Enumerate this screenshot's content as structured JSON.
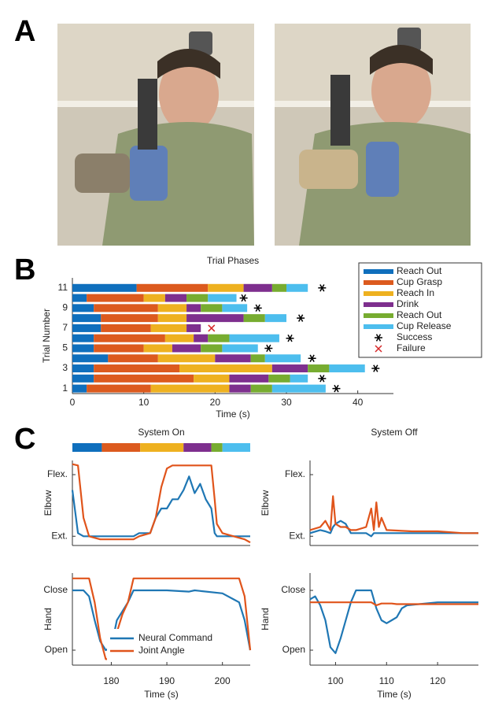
{
  "panel_labels": [
    "A",
    "B",
    "C"
  ],
  "chart_data": [
    {
      "type": "bar",
      "orientation": "horizontal",
      "stacked": true,
      "title": "Trial Phases",
      "xlabel": "Time (s)",
      "ylabel": "Trial Number",
      "categories": [
        1,
        2,
        3,
        4,
        5,
        6,
        7,
        8,
        9,
        10,
        11
      ],
      "xlim": [
        0,
        45
      ],
      "xticks": [
        0,
        10,
        20,
        30,
        40
      ],
      "ylim": [
        0.5,
        12
      ],
      "yticks": [
        1,
        3,
        5,
        7,
        9,
        11
      ],
      "legend": "northeast",
      "series": [
        {
          "name": "Reach Out",
          "color": "#0f6fbd",
          "values": [
            2,
            3,
            3,
            5,
            3,
            3,
            4,
            4,
            3,
            2,
            9
          ]
        },
        {
          "name": "Cup Grasp",
          "color": "#dc5a1e",
          "values": [
            9,
            14,
            12,
            7,
            7,
            10,
            7,
            8,
            9,
            8,
            10
          ]
        },
        {
          "name": "Reach In",
          "color": "#eeb120",
          "values": [
            11,
            5,
            13,
            8,
            4,
            4,
            5,
            4,
            4,
            3,
            5
          ]
        },
        {
          "name": "Drink",
          "color": "#7e2f8e",
          "values": [
            3,
            5.5,
            5,
            5,
            4,
            2,
            2,
            8,
            2,
            3,
            4
          ]
        },
        {
          "name": "Reach Out",
          "color": "#77ac30",
          "values": [
            3,
            3,
            3,
            2,
            3,
            3,
            null,
            3,
            3,
            3,
            2
          ]
        },
        {
          "name": "Cup Release",
          "color": "#4dbeee",
          "values": [
            7.5,
            2.5,
            5,
            5,
            5,
            7,
            null,
            3,
            3.5,
            4,
            3
          ]
        }
      ],
      "markers": [
        {
          "name": "Success",
          "color": "#000000",
          "symbol": "asterisk",
          "values": [
            37,
            35,
            42.5,
            33.6,
            27.5,
            30.5,
            null,
            32,
            26,
            24,
            35
          ]
        },
        {
          "name": "Failure",
          "color": "#d62728",
          "symbol": "cross",
          "values": [
            null,
            null,
            null,
            null,
            null,
            null,
            19.5,
            null,
            null,
            null,
            null
          ]
        }
      ]
    },
    {
      "type": "line",
      "title": "System On",
      "ylabel": "Elbow",
      "phases": [
        5.3,
        6.9,
        7.8,
        5,
        2,
        5
      ],
      "xlim": [
        173,
        205
      ],
      "ylim": [
        -0.15,
        1.23
      ],
      "yticks": [
        {
          "value": 1,
          "label": "Flex."
        },
        {
          "value": 0,
          "label": "Ext."
        }
      ],
      "x": [
        173,
        174,
        175,
        176,
        178,
        180,
        184,
        185,
        187,
        188,
        189,
        190,
        191,
        192,
        193,
        194,
        195,
        196,
        197,
        198,
        198.6,
        199,
        200,
        202,
        204,
        205
      ],
      "series": [
        {
          "name": "Neural Command",
          "color": "#1f77b4",
          "values": [
            0.75,
            0.05,
            0,
            0,
            0,
            0,
            0,
            0.05,
            0.05,
            0.3,
            0.45,
            0.45,
            0.6,
            0.6,
            0.75,
            0.97,
            0.7,
            0.85,
            0.6,
            0.45,
            0.05,
            0,
            0,
            0,
            0,
            0
          ]
        },
        {
          "name": "Joint Angle",
          "color": "#e0541b",
          "values": [
            1.17,
            1.15,
            0.3,
            0,
            -0.05,
            -0.05,
            -0.05,
            0,
            0.05,
            0.3,
            0.8,
            1.1,
            1.15,
            1.15,
            1.15,
            1.15,
            1.15,
            1.15,
            1.15,
            1.15,
            0.6,
            0.2,
            0.05,
            0,
            -0.05,
            -0.1
          ]
        }
      ]
    },
    {
      "type": "line",
      "ylabel": "Hand",
      "xlabel": "Time (s)",
      "legend": "south",
      "xlim": [
        173,
        205
      ],
      "xticks": [
        180,
        190,
        200
      ],
      "ylim": [
        -0.25,
        1.29
      ],
      "yticks": [
        {
          "value": 1,
          "label": "Close"
        },
        {
          "value": 0,
          "label": "Open"
        }
      ],
      "x": [
        173,
        175,
        176,
        177,
        178,
        179,
        180,
        181,
        182,
        183,
        184,
        190,
        194,
        195,
        200,
        202,
        203,
        204,
        205
      ],
      "series": [
        {
          "name": "Neural Command",
          "color": "#1f77b4",
          "values": [
            1,
            1,
            0.9,
            0.5,
            0.15,
            0,
            0.05,
            0.5,
            0.65,
            0.8,
            1,
            1,
            0.98,
            1,
            0.95,
            0.85,
            0.8,
            0.5,
            0
          ]
        },
        {
          "name": "Joint Angle",
          "color": "#e0541b",
          "values": [
            1.2,
            1.2,
            1.2,
            0.8,
            0.2,
            -0.15,
            -0.15,
            0.3,
            0.6,
            0.8,
            1.2,
            1.2,
            1.2,
            1.2,
            1.2,
            1.2,
            1.2,
            0.9,
            0
          ]
        }
      ]
    },
    {
      "type": "line",
      "title": "System Off",
      "ylabel": "Elbow",
      "xlim": [
        95,
        128
      ],
      "ylim": [
        -0.15,
        1.23
      ],
      "yticks": [
        {
          "value": 1,
          "label": "Flex."
        },
        {
          "value": 0,
          "label": "Ext."
        }
      ],
      "x": [
        95,
        97,
        98,
        99,
        99.5,
        100,
        101,
        102,
        103,
        104,
        106,
        107,
        107.5,
        108,
        108.5,
        109,
        110,
        115,
        120,
        125,
        128
      ],
      "series": [
        {
          "name": "Neural Command",
          "color": "#1f77b4",
          "values": [
            0.05,
            0.1,
            0.08,
            0.05,
            0.15,
            0.2,
            0.25,
            0.2,
            0.05,
            0.05,
            0.05,
            0,
            0.05,
            0.05,
            0.05,
            0.05,
            0.05,
            0.05,
            0.05,
            0.05,
            0.05
          ]
        },
        {
          "name": "Joint Angle",
          "color": "#e0541b",
          "values": [
            0.1,
            0.15,
            0.25,
            0.1,
            0.65,
            0.2,
            0.15,
            0.15,
            0.1,
            0.1,
            0.15,
            0.45,
            0.1,
            0.55,
            0.15,
            0.3,
            0.1,
            0.08,
            0.08,
            0.05,
            0.05
          ]
        }
      ]
    },
    {
      "type": "line",
      "ylabel": "Hand",
      "xlabel": "Time (s)",
      "xlim": [
        95,
        128
      ],
      "xticks": [
        100,
        110,
        120
      ],
      "ylim": [
        -0.25,
        1.29
      ],
      "yticks": [
        {
          "value": 1,
          "label": "Close"
        },
        {
          "value": 0,
          "label": "Open"
        }
      ],
      "x": [
        95,
        96,
        97,
        98,
        99,
        100,
        101,
        102,
        103,
        104,
        107,
        108,
        109,
        110,
        111,
        112,
        113,
        114,
        120,
        125,
        128
      ],
      "series": [
        {
          "name": "Neural Command",
          "color": "#1f77b4",
          "values": [
            0.85,
            0.9,
            0.75,
            0.5,
            0.05,
            -0.05,
            0.2,
            0.5,
            0.8,
            1,
            1,
            0.7,
            0.5,
            0.45,
            0.5,
            0.55,
            0.7,
            0.75,
            0.8,
            0.8,
            0.8
          ]
        },
        {
          "name": "Joint Angle",
          "color": "#e0541b",
          "values": [
            0.8,
            0.8,
            0.8,
            0.8,
            0.8,
            0.8,
            0.8,
            0.8,
            0.8,
            0.8,
            0.8,
            0.75,
            0.78,
            0.78,
            0.78,
            0.77,
            0.77,
            0.77,
            0.77,
            0.77,
            0.77
          ]
        }
      ]
    }
  ]
}
